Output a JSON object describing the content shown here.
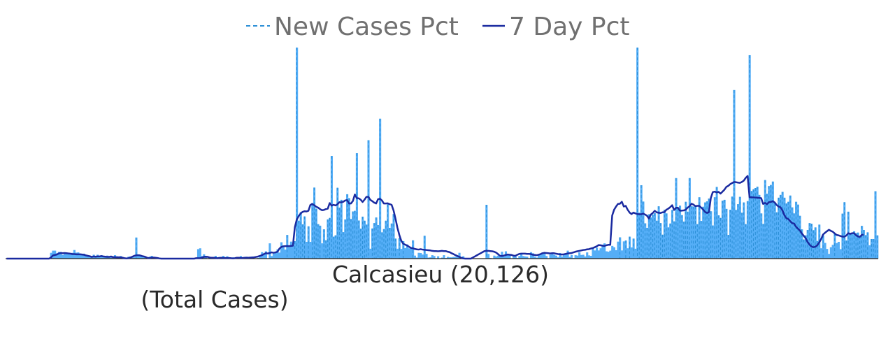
{
  "chart_data": {
    "type": "bar",
    "title": "Calcasieu (20,126)",
    "subtitle": "(Total Cases)",
    "legend": {
      "placement": "top-center",
      "items": [
        {
          "name": "New Cases Pct",
          "style": "dashed",
          "color": "#2b8fd6"
        },
        {
          "name": "7 Day Pct",
          "style": "solid",
          "color": "#1a2aa0"
        }
      ]
    },
    "grid": false,
    "axes_visible": false,
    "colors": {
      "bars": "#55aef7",
      "bar_dash": "#2b8fd6",
      "line": "#1a2aa0",
      "baseline": "#1c1c1c"
    },
    "ylim": [
      0,
      100
    ],
    "series": [
      {
        "name": "New Cases Pct",
        "values": [
          0,
          0,
          0,
          0,
          0,
          0,
          0,
          0,
          0,
          0,
          0,
          0,
          0,
          0,
          0,
          0,
          0,
          0,
          0,
          0,
          0,
          0,
          0,
          2.7,
          3.7,
          3.7,
          2.5,
          3.1,
          3.1,
          1.7,
          2.6,
          2.6,
          2.2,
          2.2,
          2.7,
          4.0,
          2.8,
          2.9,
          2.4,
          2.0,
          2.3,
          1.3,
          1.1,
          1.1,
          0.7,
          1.8,
          1.0,
          1.8,
          0.9,
          1.6,
          1.1,
          1.0,
          1.4,
          0.6,
          1.1,
          1.0,
          1.6,
          1.1,
          1.0,
          1.2,
          0.2,
          0,
          0,
          0.9,
          1.0,
          1.1,
          0.8,
          9.8,
          1.3,
          1.2,
          1.4,
          0.7,
          0.5,
          0.3,
          0.9,
          1.3,
          0,
          0,
          0,
          0,
          0,
          0,
          0,
          0,
          0,
          0,
          0,
          0,
          0,
          0,
          0,
          0,
          0,
          0,
          0,
          0,
          0,
          0.2,
          0.2,
          4.4,
          4.8,
          1.2,
          2.0,
          1.0,
          0.2,
          0.3,
          0.5,
          0,
          1.3,
          0,
          0.8,
          0.5,
          1.3,
          0.3,
          1.1,
          0,
          0,
          0.6,
          0,
          0,
          0,
          1.2,
          0,
          0.2,
          0.9,
          0,
          0,
          1.0,
          0,
          0.1,
          0.4,
          1.1,
          3.0,
          2.0,
          3.4,
          0.2,
          7.1,
          1.2,
          2.3,
          2.6,
          4.3,
          2.8,
          7.6,
          6.1,
          4.2,
          11.0,
          5.4,
          7.9,
          6.2,
          8.1,
          98.0,
          17.6,
          21.6,
          15.9,
          19.6,
          7.8,
          15.0,
          7.8,
          25.8,
          33.0,
          23.2,
          16.0,
          15.3,
          7.1,
          13.6,
          8.5,
          18.2,
          18.9,
          47.7,
          10.2,
          10.8,
          32.9,
          23.7,
          27.3,
          12.3,
          18.2,
          29.9,
          28.1,
          18.4,
          21.9,
          22.2,
          49.0,
          17.7,
          13.9,
          19.5,
          17.6,
          15.8,
          55.0,
          4.6,
          14.0,
          16.5,
          19.1,
          15.6,
          65.0,
          12.2,
          13.7,
          17.6,
          25.2,
          14.3,
          16.3,
          20.7,
          9.3,
          4.6,
          9.5,
          4.5,
          8.1,
          4.9,
          6.6,
          4.8,
          5.0,
          8.5,
          1.4,
          0.5,
          2.7,
          2.6,
          1.9,
          10.6,
          2.2,
          0.5,
          0.6,
          1.6,
          1.2,
          0.1,
          1.1,
          0,
          0.5,
          1.6,
          0.3,
          0.8,
          0.6,
          0.6,
          0.8,
          0.8,
          1.4,
          2.7,
          0.5,
          1.1,
          0.3,
          0,
          0,
          0,
          0,
          0,
          0,
          0,
          0,
          0,
          0,
          25.0,
          2.2,
          0.3,
          0.1,
          1.4,
          1.0,
          1.4,
          0.9,
          3.2,
          1.0,
          3.4,
          2.0,
          1.5,
          0.1,
          1.1,
          0.9,
          0.3,
          1.2,
          2.1,
          1.2,
          1.0,
          0.9,
          0,
          3.0,
          2.5,
          1.0,
          0.5,
          1.7,
          1.8,
          2.9,
          2.8,
          1.2,
          0.1,
          1.9,
          2.6,
          1.8,
          1.4,
          0.6,
          2.6,
          1.0,
          2.1,
          2.4,
          3.7,
          0.8,
          1.7,
          0.3,
          1.6,
          1.4,
          2.9,
          1.7,
          1.8,
          1.0,
          2.9,
          1.5,
          1.3,
          5.3,
          3.8,
          5.1,
          3.8,
          4.8,
          6.5,
          7.1,
          3.4,
          3.2,
          3.7,
          5.9,
          5.3,
          3.9,
          7.9,
          9.9,
          3.8,
          8.0,
          8.4,
          4.8,
          10.2,
          5.2,
          9.3,
          4.6,
          98.0,
          21.3,
          34.1,
          26.5,
          16.4,
          14.3,
          20.6,
          19.1,
          20.5,
          21.1,
          17.6,
          24.3,
          16.5,
          11.1,
          22.7,
          21.0,
          14.5,
          16.3,
          22.6,
          17.3,
          37.4,
          23.3,
          24.6,
          20.2,
          17.2,
          26.4,
          21.8,
          37.4,
          24.3,
          24.2,
          24.3,
          16.0,
          28.5,
          17.5,
          24.1,
          26.1,
          26.6,
          27.9,
          22.0,
          15.4,
          28.5,
          33.3,
          20.1,
          18.9,
          26.9,
          27.3,
          23.1,
          11.0,
          22.7,
          28.8,
          78.3,
          22.6,
          25.3,
          28.7,
          21.3,
          26.1,
          16.0,
          26.7,
          94.5,
          31.4,
          32.2,
          32.8,
          33.4,
          29.6,
          21.0,
          16.1,
          36.5,
          30.1,
          33.7,
          34.2,
          35.8,
          25.7,
          21.5,
          28.3,
          29.6,
          31.0,
          28.3,
          25.6,
          26.4,
          29.3,
          23.8,
          21.0,
          26.4,
          25.1,
          19.9,
          13.6,
          8.9,
          10.8,
          13.3,
          16.5,
          16.2,
          13.2,
          14.5,
          8.2,
          15.8,
          4.8,
          10.8,
          7.3,
          4.5,
          2.2,
          5.3,
          6.4,
          11.7,
          7.2,
          7.8,
          4.4,
          20.9,
          26.2,
          8.4,
          21.8,
          11.9,
          12.0,
          12.7,
          11.8,
          12.1,
          10.4,
          15.2,
          13.3,
          10.9,
          12.2,
          6.2,
          9.1,
          9.1,
          31.3,
          10.8
        ]
      },
      {
        "name": "7 Day Pct",
        "values": [
          0,
          0,
          0,
          0,
          0,
          0,
          0,
          0,
          0,
          0,
          0,
          0,
          0,
          0,
          0,
          0,
          0,
          0,
          0,
          0,
          0,
          0,
          0,
          0.6,
          1.5,
          1.7,
          1.9,
          2.4,
          2.6,
          2.5,
          2.6,
          2.5,
          2.4,
          2.3,
          2.1,
          2.1,
          2.0,
          2.0,
          2.0,
          1.9,
          1.8,
          1.5,
          1.3,
          1.1,
          0.8,
          1.0,
          0.9,
          1.0,
          1.0,
          1.2,
          1.0,
          0.9,
          0.8,
          0.8,
          1.0,
          0.7,
          0.7,
          0.6,
          0.6,
          0.6,
          0.4,
          0.2,
          0.1,
          0.2,
          0.5,
          0.9,
          1.3,
          1.5,
          1.6,
          1.5,
          1.2,
          1.0,
          0.7,
          0.3,
          0.3,
          0.5,
          0.5,
          0.4,
          0.3,
          0.1,
          0,
          0,
          0,
          0,
          0,
          0,
          0,
          0,
          0,
          0,
          0,
          0,
          0,
          0,
          0,
          0,
          0,
          0,
          0.2,
          0.2,
          0.2,
          0.5,
          0.8,
          0.9,
          0.8,
          0.5,
          0.4,
          0.4,
          0.3,
          0.2,
          0.3,
          0.4,
          0.3,
          0.3,
          0.3,
          0.3,
          0.2,
          0.1,
          0.2,
          0.4,
          0.4,
          0.3,
          0.3,
          0.4,
          0.4,
          0.4,
          0.5,
          0.5,
          0.6,
          0.8,
          1.0,
          1.3,
          1.6,
          2.1,
          2.5,
          2.4,
          2.6,
          2.9,
          2.7,
          2.9,
          3.2,
          4.6,
          5.4,
          5.7,
          5.8,
          5.8,
          5.8,
          5.9,
          6.0,
          14.6,
          18.2,
          19.8,
          21.0,
          21.7,
          22.0,
          21.9,
          22.2,
          24.9,
          25.4,
          24.8,
          24.1,
          23.7,
          23.0,
          22.5,
          22.6,
          23.0,
          23.2,
          25.8,
          24.6,
          25.0,
          24.7,
          25.2,
          26.2,
          26.1,
          26.4,
          27.0,
          27.2,
          25.6,
          25.6,
          26.8,
          29.8,
          28.1,
          28.0,
          27.4,
          26.3,
          27.4,
          28.7,
          28.7,
          27.3,
          26.7,
          26.0,
          25.6,
          27.6,
          27.8,
          27.0,
          25.6,
          25.6,
          25.7,
          25.3,
          25.0,
          22.4,
          18.6,
          14.4,
          11.0,
          8.3,
          6.9,
          6.5,
          6.1,
          5.5,
          5.0,
          4.8,
          4.5,
          4.3,
          4.2,
          4.4,
          4.2,
          4.1,
          4.0,
          3.9,
          3.8,
          3.6,
          3.5,
          3.5,
          3.4,
          3.5,
          3.6,
          3.5,
          3.5,
          3.2,
          3.0,
          2.5,
          2.1,
          1.6,
          1.2,
          0.8,
          0.4,
          0.1,
          0,
          0,
          0,
          0,
          0.5,
          1.0,
          1.5,
          2.0,
          2.5,
          3.0,
          3.5,
          3.6,
          3.6,
          3.5,
          3.4,
          3.2,
          2.8,
          2.1,
          1.3,
          1.2,
          1.4,
          1.7,
          1.9,
          1.8,
          1.7,
          1.4,
          1.3,
          1.8,
          2.2,
          2.3,
          2.3,
          2.3,
          2.2,
          2.2,
          2.1,
          1.8,
          1.7,
          1.6,
          1.8,
          2.1,
          2.5,
          2.7,
          2.6,
          2.5,
          2.4,
          2.5,
          2.5,
          2.3,
          2.1,
          2.0,
          1.9,
          2.0,
          2.2,
          2.4,
          2.5,
          2.6,
          2.9,
          3.2,
          3.4,
          3.6,
          3.8,
          4.0,
          4.1,
          4.3,
          4.4,
          4.7,
          4.9,
          5.3,
          5.7,
          6.3,
          6.2,
          6.0,
          5.9,
          6.2,
          6.4,
          6.4,
          20.0,
          22.7,
          24.2,
          25.4,
          25.5,
          26.4,
          24.2,
          24.5,
          22.7,
          21.4,
          20.7,
          21.4,
          21.0,
          20.7,
          20.6,
          20.6,
          20.9,
          20.5,
          19.9,
          18.6,
          20.5,
          21.2,
          22.2,
          21.5,
          21.3,
          21.2,
          21.5,
          21.6,
          22.7,
          23.2,
          23.9,
          24.8,
          22.6,
          23.6,
          23.6,
          22.3,
          22.3,
          22.4,
          22.7,
          23.7,
          24.3,
          25.5,
          25.1,
          24.4,
          24.5,
          24.5,
          23.7,
          22.8,
          21.7,
          21.2,
          21.6,
          28.2,
          30.9,
          31.1,
          30.8,
          31.0,
          30.2,
          31.1,
          32.0,
          33.3,
          33.8,
          34.6,
          35.1,
          35.6,
          35.5,
          35.3,
          35.2,
          35.6,
          36.2,
          37.5,
          38.4,
          28.5,
          28.5,
          28.4,
          28.4,
          28.3,
          28.2,
          28.1,
          25.4,
          25.9,
          25.3,
          26.2,
          26.3,
          26.7,
          26.1,
          24.9,
          24.2,
          23.8,
          22.4,
          20.2,
          18.8,
          18.4,
          17.4,
          16.5,
          16.3,
          14.8,
          13.9,
          13.1,
          11.7,
          10.6,
          9.5,
          7.7,
          6.5,
          5.6,
          5.3,
          5.5,
          6.2,
          7.5,
          9.1,
          11.2,
          12.0,
          12.7,
          13.4,
          12.9,
          12.5,
          11.7,
          11.0,
          10.8,
          10.5,
          10.2,
          10.2,
          10.7,
          11.8,
          11.5,
          11.8,
          11.8,
          10.9,
          10.3,
          10.1,
          11.0,
          11.2
        ]
      }
    ]
  }
}
